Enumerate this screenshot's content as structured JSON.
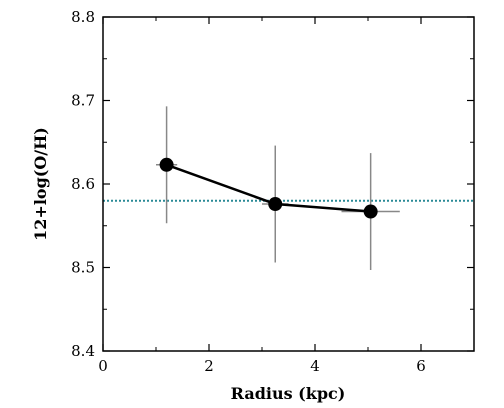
{
  "chart_data": {
    "type": "scatter",
    "xlabel": "Radius (kpc)",
    "ylabel": "12+log(O/H)",
    "xlim": [
      0,
      7
    ],
    "ylim": [
      8.4,
      8.8
    ],
    "xticks": [
      0,
      2,
      4,
      6
    ],
    "xtick_labels": [
      "0",
      "2",
      "4",
      "6"
    ],
    "yticks": [
      8.4,
      8.5,
      8.6,
      8.7,
      8.8
    ],
    "ytick_labels": [
      "8.4",
      "8.5",
      "8.6",
      "8.7",
      "8.8"
    ],
    "grid": false,
    "series": [
      {
        "x": [
          1.2,
          3.25,
          5.05
        ],
        "y": [
          8.623,
          8.576,
          8.567
        ],
        "y_err": [
          0.07,
          0.07,
          0.07
        ],
        "x_err": [
          0.2,
          0.25,
          0.55
        ],
        "color": "#000000",
        "line": true
      }
    ],
    "reference_lines": [
      {
        "orientation": "horizontal",
        "y": 8.58,
        "style": "dotted",
        "color": "#2a8a96"
      }
    ],
    "colors": {
      "errorbar": "#888888",
      "reference": "#2a8a96",
      "marker": "#000000"
    }
  }
}
